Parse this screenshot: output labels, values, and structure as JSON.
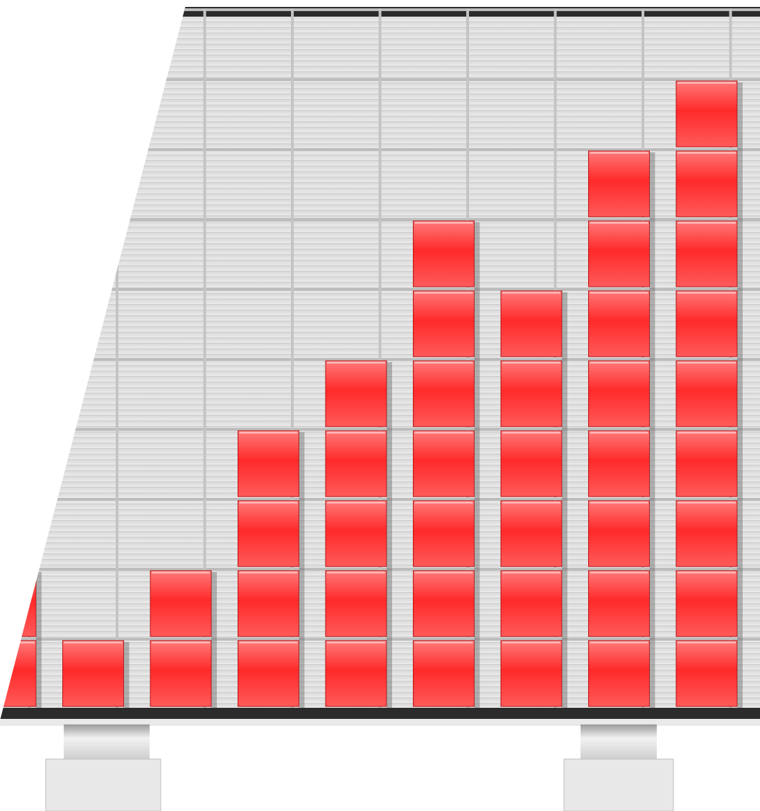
{
  "chart_data": {
    "type": "bar",
    "title": "",
    "xlabel": "",
    "ylabel": "",
    "categories": [
      "",
      "",
      "",
      "",
      "",
      "",
      "",
      "",
      ""
    ],
    "values": [
      2,
      1,
      2,
      4,
      5,
      7,
      6,
      8,
      9
    ],
    "ylim": [
      0,
      10
    ],
    "grid": true,
    "legend": "none",
    "style": "3d stacked red cubes on a metallic grid panel with two silver feet, left side cut diagonally"
  },
  "colors": {
    "cube_red": "#ff2a2a",
    "cube_light": "#ff6b6b",
    "cube_dark": "#d81010",
    "panel_grey": "#e2e2e2",
    "grid_line": "#b7b7b7",
    "frame_dark": "#2b2b2b",
    "background": "#ffffff"
  }
}
